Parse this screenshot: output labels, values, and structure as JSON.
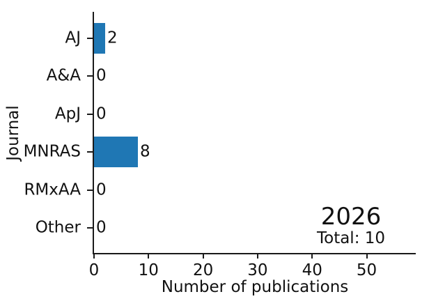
{
  "figure": {
    "background": "#ffffff",
    "text_color": "#111111",
    "year_label": "2026",
    "total_label": "Total: 10"
  },
  "chart_data": {
    "type": "bar",
    "orientation": "horizontal",
    "title": "",
    "xlabel": "Number of publications",
    "ylabel": "Journal",
    "categories": [
      "AJ",
      "A&A",
      "ApJ",
      "MNRAS",
      "RMxAA",
      "Other"
    ],
    "values": [
      2,
      0,
      0,
      8,
      0,
      0
    ],
    "bar_value_labels": [
      "2",
      "0",
      "0",
      "8",
      "0",
      "0"
    ],
    "x_ticks": [
      0,
      10,
      20,
      30,
      40,
      50
    ],
    "xlim": [
      0,
      59
    ],
    "bar_color": "#1f77b4",
    "grid": false,
    "legend_position": "none",
    "annotations": [
      {
        "role": "year",
        "text": "2026"
      },
      {
        "role": "total",
        "text": "Total: 10"
      }
    ]
  }
}
